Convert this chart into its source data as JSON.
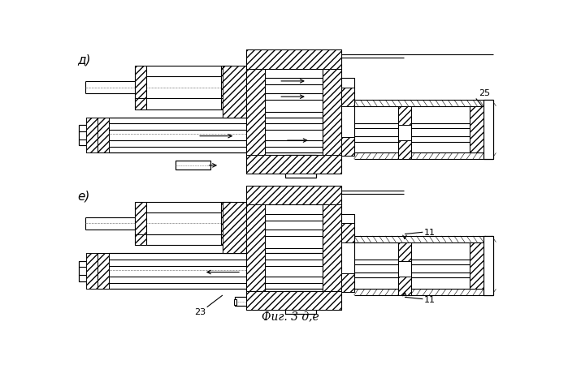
{
  "bg_color": "#ffffff",
  "line_color": "#000000",
  "label_d": "д)",
  "label_e": "е)",
  "caption": "Фиг. 3 д,е",
  "label_25": "25",
  "label_23": "23",
  "label_11a": "11",
  "label_11b": "11",
  "fig_width": 6.99,
  "fig_height": 4.56,
  "dpi": 100
}
